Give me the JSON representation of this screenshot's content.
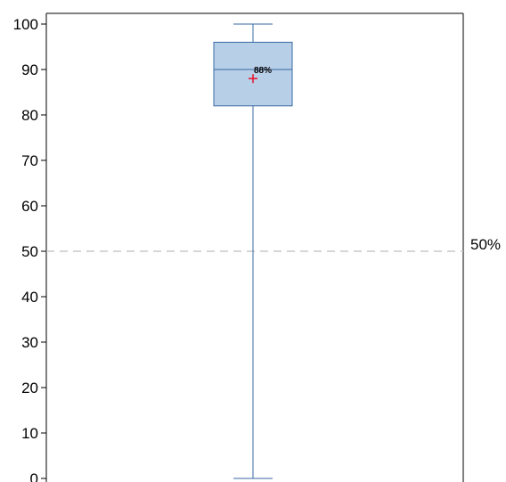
{
  "chart_data": {
    "type": "box",
    "title": "",
    "xlabel": "",
    "ylabel": "",
    "ylim": [
      0,
      100
    ],
    "y_ticks": [
      0,
      10,
      20,
      30,
      40,
      50,
      60,
      70,
      80,
      90,
      100
    ],
    "grid": false,
    "legend": "none",
    "box": {
      "min": 0,
      "q1": 82,
      "median": 90,
      "q3": 96,
      "max": 100,
      "mean": 88,
      "mean_label": "88%"
    },
    "reference_line": {
      "value": 50,
      "label": "50%"
    },
    "colors": {
      "box_fill": "#b8cfe8",
      "box_stroke": "#3a6aa3",
      "whisker": "#3a6aa3",
      "mean_marker": "#e8112d",
      "reference_line": "#c8c8c8",
      "axis": "#000000"
    }
  }
}
